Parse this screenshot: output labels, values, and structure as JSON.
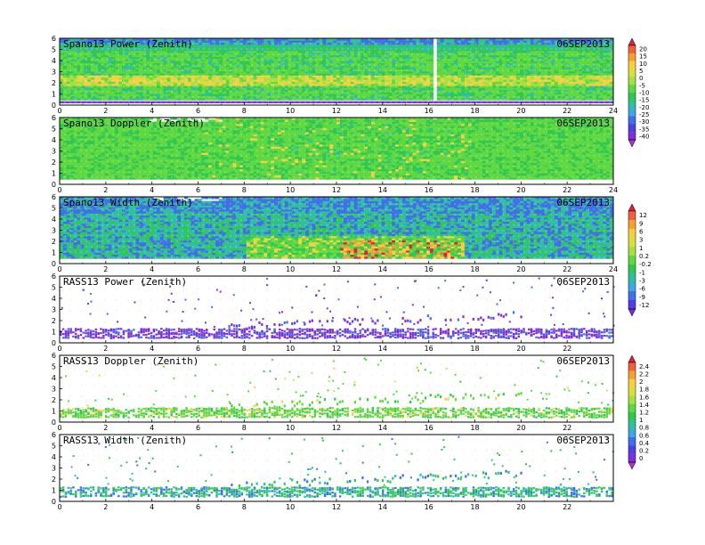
{
  "chart_data": [
    {
      "type": "heatmap",
      "title": "Spano13 Power (Zenith)",
      "date": "06SEP2013",
      "x_ticks": [
        0,
        2,
        4,
        6,
        8,
        10,
        12,
        14,
        16,
        18,
        20,
        22,
        24
      ],
      "y_ticks": [
        0,
        1,
        2,
        3,
        4,
        5,
        6
      ],
      "xlim": [
        0,
        24
      ],
      "ylim": [
        0,
        6
      ],
      "fill": "dense",
      "colorbar": "A"
    },
    {
      "type": "heatmap",
      "title": "Spano13 Doppler (Zenith)",
      "date": "06SEP2013",
      "x_ticks": [
        0,
        2,
        4,
        6,
        8,
        10,
        12,
        14,
        16,
        18,
        20,
        22,
        24
      ],
      "y_ticks": [
        0,
        1,
        2,
        3,
        4,
        5,
        6
      ],
      "xlim": [
        0,
        24
      ],
      "ylim": [
        0,
        6
      ],
      "fill": "dense"
    },
    {
      "type": "heatmap",
      "title": "Spano13 Width (Zenith)",
      "date": "06SEP2013",
      "x_ticks": [
        0,
        2,
        4,
        6,
        8,
        10,
        12,
        14,
        16,
        18,
        20,
        22,
        24
      ],
      "y_ticks": [
        0,
        1,
        2,
        3,
        4,
        5,
        6
      ],
      "xlim": [
        0,
        24
      ],
      "ylim": [
        0,
        6
      ],
      "fill": "dense",
      "colorbar": "B"
    },
    {
      "type": "heatmap",
      "title": "RASS13 Power (Zenith)",
      "date": "06SEP2013",
      "x_ticks": [
        0,
        2,
        4,
        6,
        8,
        10,
        12,
        14,
        16,
        18,
        20,
        22
      ],
      "y_ticks": [
        0,
        1,
        2,
        3,
        4,
        5,
        6
      ],
      "xlim": [
        0,
        24
      ],
      "ylim": [
        0,
        6
      ],
      "fill": "sparse"
    },
    {
      "type": "heatmap",
      "title": "RASS13 Doppler (Zenith)",
      "date": "06SEP2013",
      "x_ticks": [
        0,
        2,
        4,
        6,
        8,
        10,
        12,
        14,
        16,
        18,
        20,
        22
      ],
      "y_ticks": [
        0,
        1,
        2,
        3,
        4,
        5,
        6
      ],
      "xlim": [
        0,
        24
      ],
      "ylim": [
        0,
        6
      ],
      "fill": "sparse",
      "colorbar": "C"
    },
    {
      "type": "heatmap",
      "title": "RASS13 Width (Zenith)",
      "date": "06SEP2013",
      "x_ticks": [
        0,
        2,
        4,
        6,
        8,
        10,
        12,
        14,
        16,
        18,
        20,
        22
      ],
      "y_ticks": [
        0,
        1,
        2,
        3,
        4,
        5,
        6
      ],
      "xlim": [
        0,
        24
      ],
      "ylim": [
        0,
        6
      ],
      "fill": "sparse"
    }
  ],
  "colorbars": {
    "A": {
      "labels": [
        "20",
        "15",
        "10",
        "5",
        "0",
        "-5",
        "-10",
        "-15",
        "-20",
        "-25",
        "-30",
        "-35",
        "-40"
      ],
      "colors": [
        "#e0203a",
        "#f06040",
        "#f5a030",
        "#f5d040",
        "#d8e040",
        "#a8e040",
        "#60d840",
        "#30c850",
        "#30c0a0",
        "#40a8e0",
        "#4070e8",
        "#5040e0",
        "#8030d8",
        "#b030d0"
      ]
    },
    "B": {
      "labels": [
        "12",
        "9",
        "6",
        "3",
        "1",
        "0.2",
        "-0.2",
        "-1",
        "-3",
        "-6",
        "-9",
        "-12"
      ],
      "colors": [
        "#e0203a",
        "#f06040",
        "#f5a030",
        "#f5d040",
        "#d8e040",
        "#a8e040",
        "#60d840",
        "#30c850",
        "#30c0a0",
        "#40a8e0",
        "#4070e8",
        "#5040e0",
        "#8030d8"
      ]
    },
    "C": {
      "labels": [
        "2.4",
        "2.2",
        "2",
        "1.8",
        "1.6",
        "1.4",
        "1.2",
        "1",
        "0.8",
        "0.6",
        "0.4",
        "0.2",
        "0"
      ],
      "colors": [
        "#e0203a",
        "#f06040",
        "#f5a030",
        "#f5d040",
        "#d8e040",
        "#a8e040",
        "#60d840",
        "#30c850",
        "#30c0a0",
        "#40a8e0",
        "#4070e8",
        "#5040e0",
        "#8030d8",
        "#b030d0"
      ]
    }
  }
}
